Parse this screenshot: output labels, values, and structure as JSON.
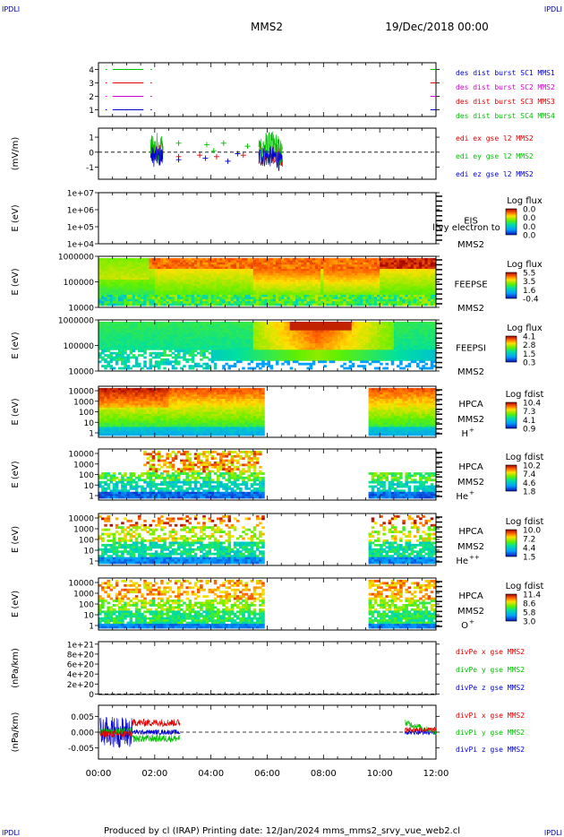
{
  "corner_left": "IPDLI",
  "corner_right": "IPDLI",
  "corner_bottom_left": "IPDLI",
  "corner_bottom_right": "IPDLI",
  "title": "MMS2",
  "date": "19/Dec/2018 00:00",
  "footer": "Produced by cl (IRAP)   Printing date: 12/Jan/2024   mms_mms2_srvy_vue_web2.cl",
  "colors": {
    "red": "#e00000",
    "green": "#00c000",
    "blue": "#0000d0",
    "magenta": "#d000d0",
    "dark_blue": "#0000a0"
  },
  "chart_data": [
    {
      "type": "line",
      "panel": "burst",
      "ylim": [
        0.5,
        4.5
      ],
      "y_ticks": [
        "1",
        "2",
        "3",
        "4"
      ],
      "legend": [
        {
          "name": "des dist burst SC1 MMS1",
          "color": "#0000d0"
        },
        {
          "name": "des dist burst SC2 MMS2",
          "color": "#d000d0"
        },
        {
          "name": "des dist burst SC3 MMS3",
          "color": "#e00000"
        },
        {
          "name": "des dist burst SC4 MMS4",
          "color": "#00c000"
        }
      ]
    },
    {
      "type": "line",
      "panel": "edi",
      "ylabel": "(mV/m)",
      "ylim": [
        -1.8,
        1.6
      ],
      "y_ticks": [
        "-1",
        "0",
        "1"
      ],
      "legend": [
        {
          "name": "edi ex gse l2 MMS2",
          "color": "#e00000"
        },
        {
          "name": "edi ey gse l2 MMS2",
          "color": "#00c000"
        },
        {
          "name": "edi ez gse l2 MMS2",
          "color": "#0000d0"
        }
      ]
    },
    {
      "type": "heatmap",
      "panel": "EIS",
      "ylabel": "E (eV)",
      "y_ticks": [
        "1e+07",
        "1e+06",
        "1e+05",
        "1e+04"
      ],
      "labels": [
        "EIS",
        "MMS2"
      ],
      "overlay_label": "l(vy electron to",
      "colorbar_title": "Log flux",
      "colorbar_ticks": [
        "0.0",
        "0.0",
        "0.0",
        "0.0"
      ]
    },
    {
      "type": "heatmap",
      "panel": "FEEPSE",
      "ylabel": "E (eV)",
      "y_ticks": [
        "1000000",
        "100000",
        "10000"
      ],
      "labels": [
        "FEEPSE",
        "MMS2"
      ],
      "colorbar_title": "Log flux",
      "colorbar_ticks": [
        "5.5",
        "3.5",
        "1.6",
        "-0.4"
      ]
    },
    {
      "type": "heatmap",
      "panel": "FEEPSI",
      "ylabel": "E (eV)",
      "y_ticks": [
        "1000000",
        "100000",
        "10000"
      ],
      "labels": [
        "FEEPSI",
        "MMS2"
      ],
      "colorbar_title": "Log flux",
      "colorbar_ticks": [
        "4.1",
        "2.8",
        "1.5",
        "0.3"
      ]
    },
    {
      "type": "heatmap",
      "panel": "HPCA H+",
      "ylabel": "E (eV)",
      "y_ticks": [
        "10000",
        "1000",
        "100",
        "10",
        "1"
      ],
      "labels": [
        "HPCA",
        "MMS2"
      ],
      "species": "H",
      "species_sup": "+",
      "colorbar_title": "Log fdist",
      "colorbar_ticks": [
        "10.4",
        "7.3",
        "4.1",
        "0.9"
      ]
    },
    {
      "type": "heatmap",
      "panel": "HPCA He+",
      "ylabel": "E (eV)",
      "y_ticks": [
        "10000",
        "1000",
        "100",
        "10",
        "1"
      ],
      "labels": [
        "HPCA",
        "MMS2"
      ],
      "species": "He",
      "species_sup": "+",
      "colorbar_title": "Log fdist",
      "colorbar_ticks": [
        "10.2",
        "7.4",
        "4.6",
        "1.8"
      ]
    },
    {
      "type": "heatmap",
      "panel": "HPCA He++",
      "ylabel": "E (eV)",
      "y_ticks": [
        "10000",
        "1000",
        "100",
        "10",
        "1"
      ],
      "labels": [
        "HPCA",
        "MMS2"
      ],
      "species": "He",
      "species_sup": "++",
      "colorbar_title": "Log fdist",
      "colorbar_ticks": [
        "10.0",
        "7.2",
        "4.4",
        "1.5"
      ]
    },
    {
      "type": "heatmap",
      "panel": "HPCA O+",
      "ylabel": "E (eV)",
      "y_ticks": [
        "10000",
        "1000",
        "100",
        "10",
        "1"
      ],
      "labels": [
        "HPCA",
        "MMS2"
      ],
      "species": "O",
      "species_sup": "+",
      "colorbar_title": "Log fdist",
      "colorbar_ticks": [
        "11.4",
        "8.6",
        "5.8",
        "3.0"
      ]
    },
    {
      "type": "line",
      "panel": "divPe",
      "ylabel": "(nPa/km)",
      "ylim": [
        -1e+19,
        1.05e+21
      ],
      "y_ticks": [
        "1e+21",
        "8e+20",
        "6e+20",
        "4e+20",
        "2e+20",
        "0"
      ],
      "legend": [
        {
          "name": "divPe x gse MMS2",
          "color": "#e00000"
        },
        {
          "name": "divPe y gse MMS2",
          "color": "#00c000"
        },
        {
          "name": "divPe z gse MMS2",
          "color": "#0000d0"
        }
      ]
    },
    {
      "type": "line",
      "panel": "divPi",
      "ylabel": "(nPa/km)",
      "ylim": [
        -0.0085,
        0.0085
      ],
      "y_ticks": [
        "0.005",
        "0.000",
        "-0.005"
      ],
      "legend": [
        {
          "name": "divPi x gse MMS2",
          "color": "#e00000"
        },
        {
          "name": "divPi y gse MMS2",
          "color": "#00c000"
        },
        {
          "name": "divPi z gse MMS2",
          "color": "#0000d0"
        }
      ]
    }
  ],
  "x_axis": {
    "range_hours": [
      0,
      12
    ],
    "tick_labels": [
      "00:00",
      "02:00",
      "04:00",
      "06:00",
      "08:00",
      "10:00",
      "12:00"
    ]
  }
}
